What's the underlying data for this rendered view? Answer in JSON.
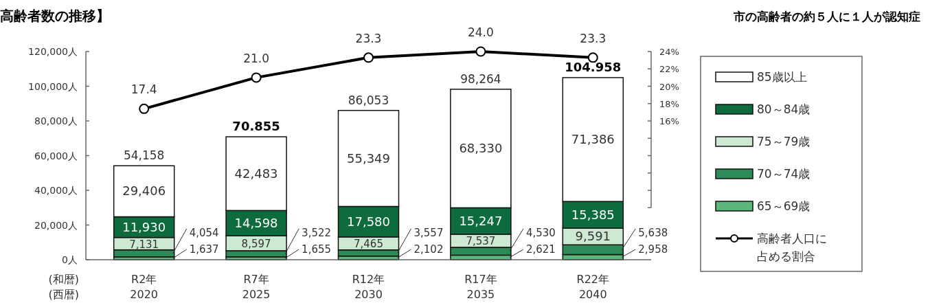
{
  "chart_data": {
    "type": "bar",
    "stacked": true,
    "title": "高齢者数の推移】",
    "subtitle": "市の高齢者の約５人に１人が認知症",
    "categories": [
      "R2年\n2020",
      "R7年\n2025",
      "R12年\n2030",
      "R17年\n2035",
      "R22年\n2040"
    ],
    "annotations": [
      "(和暦)",
      "(西暦)",
      {
        "text": "70.855",
        "x": "R7年\n2025",
        "y": 70855
      },
      {
        "text": "104.958",
        "x": "R22年\n2040",
        "y": 104958
      }
    ],
    "series": [
      {
        "name": "65～69歳",
        "color": "#5cb87a",
        "values": [
          1637,
          1655,
          2102,
          2621,
          2958
        ],
        "value_labels": [
          "1,637",
          "1,655",
          "2,102",
          "2,621",
          "2,958"
        ]
      },
      {
        "name": "70～74歳",
        "color": "#2e8b57",
        "values": [
          4054,
          3522,
          3557,
          4530,
          5638
        ],
        "value_labels": [
          "4,054",
          "3,522",
          "3,557",
          "4,530",
          "5,638"
        ]
      },
      {
        "name": "75～79歳",
        "color": "#cde9d2",
        "values": [
          7131,
          8597,
          7465,
          7537,
          9591
        ],
        "value_labels": [
          "7,131",
          "8,597",
          "7,465",
          "7,537",
          "9,591"
        ]
      },
      {
        "name": "80～84歳",
        "color": "#0d6b3d",
        "values": [
          11930,
          14598,
          17580,
          15247,
          15385
        ],
        "value_labels": [
          "11,930",
          "14,598",
          "17,580",
          "15,247",
          "15,385"
        ]
      },
      {
        "name": "85歳以上",
        "color": "#ffffff",
        "values": [
          29406,
          42483,
          55349,
          68330,
          71386
        ],
        "value_labels": [
          "29,406",
          "42,483",
          "55,349",
          "68,330",
          "71,386"
        ]
      },
      {
        "name": "高齢者人口に占める割合",
        "type": "line",
        "axis": "y2",
        "color": "#000000",
        "marker": "circle",
        "values": [
          17.4,
          21.0,
          23.3,
          24.0,
          23.3
        ],
        "value_labels": [
          "17.4",
          "21.0",
          "23.3",
          "24.0",
          "23.3"
        ]
      }
    ],
    "totals": [
      "54,158",
      null,
      "86,053",
      "98,264",
      null
    ],
    "ylim": [
      0,
      120000
    ],
    "yticks": [
      {
        "value": 0,
        "label": "0人"
      },
      {
        "value": 20000,
        "label": "20,000人"
      },
      {
        "value": 40000,
        "label": "40,000人"
      },
      {
        "value": 60000,
        "label": "60,000人"
      },
      {
        "value": 80000,
        "label": "80,000人"
      },
      {
        "value": 100000,
        "label": "100,000人"
      },
      {
        "value": 120000,
        "label": "120,000人"
      }
    ],
    "y2lim": [
      0,
      24
    ],
    "y2ticks": [
      {
        "value": 6,
        "label": null
      },
      {
        "value": 8,
        "label": null
      },
      {
        "value": 10,
        "label": null
      },
      {
        "value": 12,
        "label": null
      },
      {
        "value": 14,
        "label": null
      },
      {
        "value": 16,
        "label": "16%"
      },
      {
        "value": 18,
        "label": "18%"
      },
      {
        "value": 20,
        "label": "20%"
      },
      {
        "value": 22,
        "label": "22%"
      },
      {
        "value": 24,
        "label": "24%"
      }
    ],
    "legend": "right"
  }
}
